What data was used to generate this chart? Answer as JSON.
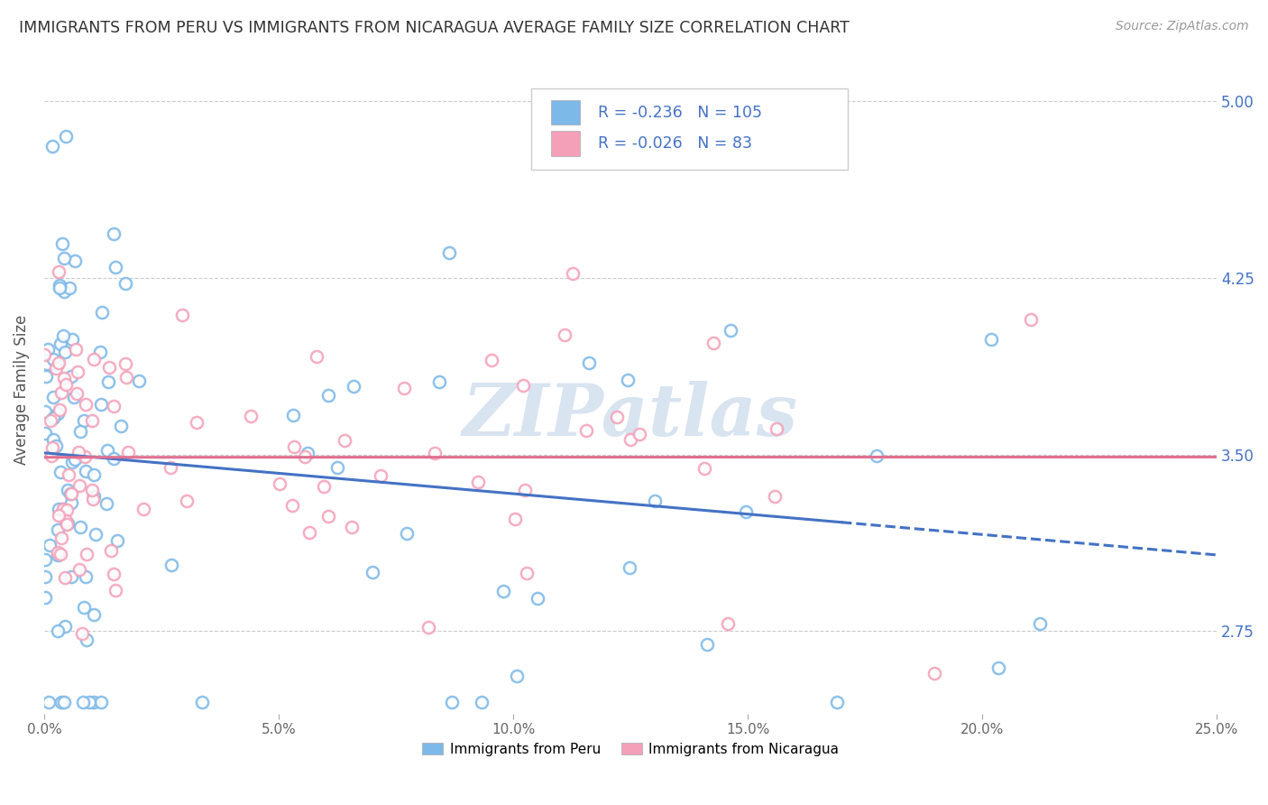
{
  "title": "IMMIGRANTS FROM PERU VS IMMIGRANTS FROM NICARAGUA AVERAGE FAMILY SIZE CORRELATION CHART",
  "source": "Source: ZipAtlas.com",
  "ylabel": "Average Family Size",
  "xmin": 0.0,
  "xmax": 0.25,
  "ymin": 2.4,
  "ymax": 5.15,
  "yticks": [
    2.75,
    3.5,
    4.25,
    5.0
  ],
  "xtick_labels": [
    "0.0%",
    "5.0%",
    "10.0%",
    "15.0%",
    "20.0%",
    "25.0%"
  ],
  "xtick_vals": [
    0.0,
    0.05,
    0.1,
    0.15,
    0.2,
    0.25
  ],
  "peru_color": "#7cb8e8",
  "peru_edge_color": "#5a9fd4",
  "nicaragua_color": "#f4a0b8",
  "nicaragua_edge_color": "#e0708a",
  "peru_R": -0.236,
  "peru_N": 105,
  "nicaragua_R": -0.026,
  "nicaragua_N": 83,
  "legend_label_peru": "Immigrants from Peru",
  "legend_label_nicaragua": "Immigrants from Nicaragua",
  "watermark": "ZIPatlas",
  "background_color": "#ffffff",
  "grid_color": "#cccccc",
  "title_color": "#333333",
  "axis_label_color": "#555555",
  "right_tick_color": "#4472c4",
  "blue_line_color": "#4472c4",
  "pink_line_color": "#e07090",
  "legend_text_color": "#4472c4"
}
